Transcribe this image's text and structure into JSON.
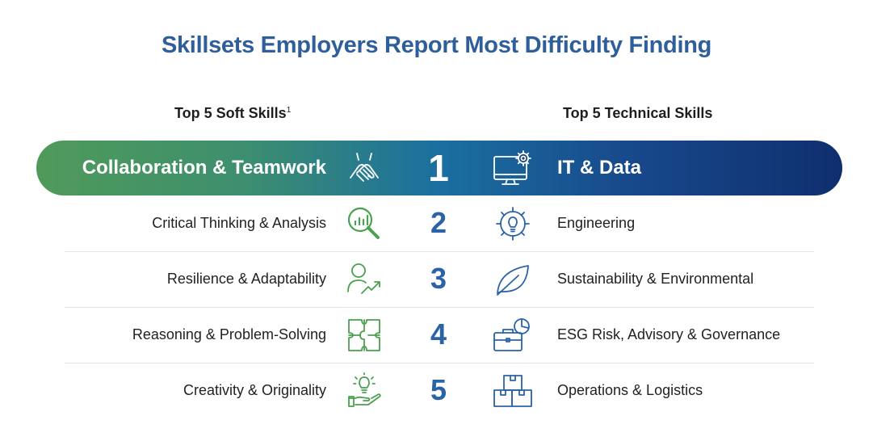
{
  "title": "Skillsets Employers Report Most Difficulty Finding",
  "left_header": "Top 5 Soft Skills",
  "left_header_sup": "1",
  "right_header": "Top 5 Technical Skills",
  "colors": {
    "title": "#2f5f9a",
    "green": "#4aa14f",
    "blue": "#2b63a6",
    "navy": "#0f2f6e"
  },
  "rows": [
    {
      "rank": "1",
      "soft": "Collaboration & Teamwork",
      "soft_icon": "handshake-icon",
      "tech": "IT & Data",
      "tech_icon": "monitor-gear-icon"
    },
    {
      "rank": "2",
      "soft": "Critical Thinking & Analysis",
      "soft_icon": "magnifier-chart-icon",
      "tech": "Engineering",
      "tech_icon": "gear-bulb-icon"
    },
    {
      "rank": "3",
      "soft": "Resilience & Adaptability",
      "soft_icon": "person-growth-icon",
      "tech": "Sustainability & Environmental",
      "tech_icon": "leaf-icon"
    },
    {
      "rank": "4",
      "soft": "Reasoning & Problem-Solving",
      "soft_icon": "puzzle-icon",
      "tech": "ESG Risk, Advisory & Governance",
      "tech_icon": "briefcase-chart-icon"
    },
    {
      "rank": "5",
      "soft": "Creativity & Originality",
      "soft_icon": "hand-bulb-icon",
      "tech": "Operations & Logistics",
      "tech_icon": "boxes-icon"
    }
  ]
}
